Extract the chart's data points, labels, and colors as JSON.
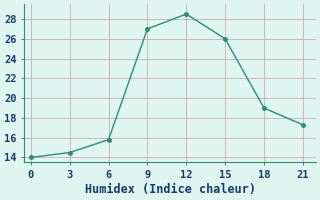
{
  "x": [
    0,
    3,
    6,
    9,
    12,
    15,
    18,
    21
  ],
  "y": [
    14,
    14.5,
    15.8,
    27,
    28.5,
    26,
    19,
    17.3
  ],
  "xlabel": "Humidex (Indice chaleur)",
  "xlim": [
    -0.5,
    22
  ],
  "ylim": [
    13.5,
    29.5
  ],
  "xticks": [
    0,
    3,
    6,
    9,
    12,
    15,
    18,
    21
  ],
  "yticks": [
    14,
    16,
    18,
    20,
    22,
    24,
    26,
    28
  ],
  "line_color": "#2e8b74",
  "marker": "o",
  "marker_size": 2.5,
  "background_color": "#dff5f0",
  "grid_color": "#c8aeae",
  "font_color": "#1a3a6e",
  "xlabel_fontsize": 8.5,
  "tick_fontsize": 7.5
}
